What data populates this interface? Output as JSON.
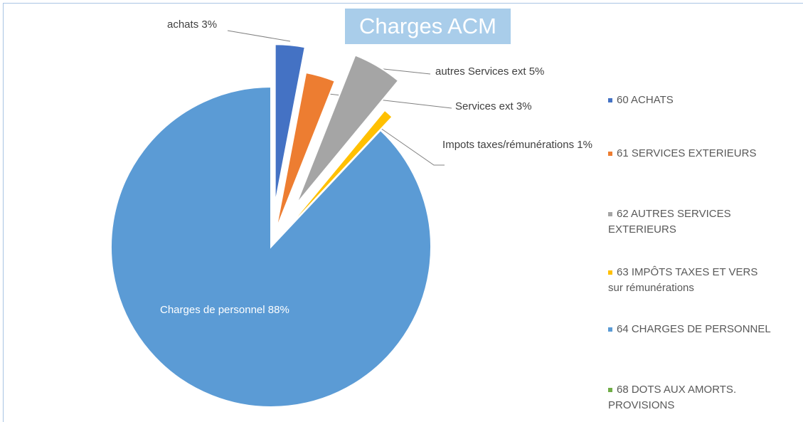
{
  "chart_data": {
    "type": "pie",
    "title": "Charges ACM",
    "categories": [
      "60  ACHATS",
      "61 SERVICES EXTERIEURS",
      "62 AUTRES SERVICES EXTERIEURS",
      "63  IMPÔTS TAXES ET VERS sur rémunérations",
      "64 CHARGES DE PERSONNEL",
      "68 DOTS AUX AMORTS. PROVISIONS"
    ],
    "values": [
      3,
      3,
      5,
      1,
      88,
      0
    ],
    "value_labels": [
      "achats 3%",
      "Services ext 3%",
      "autres Services ext 5%",
      "Impots taxes/rémunérations 1%",
      "Charges de personnel 88%",
      null
    ],
    "colors": [
      "#4472c4",
      "#ed7d31",
      "#a5a5a5",
      "#ffc000",
      "#5b9bd5",
      "#70ad47"
    ],
    "legend": "right"
  }
}
